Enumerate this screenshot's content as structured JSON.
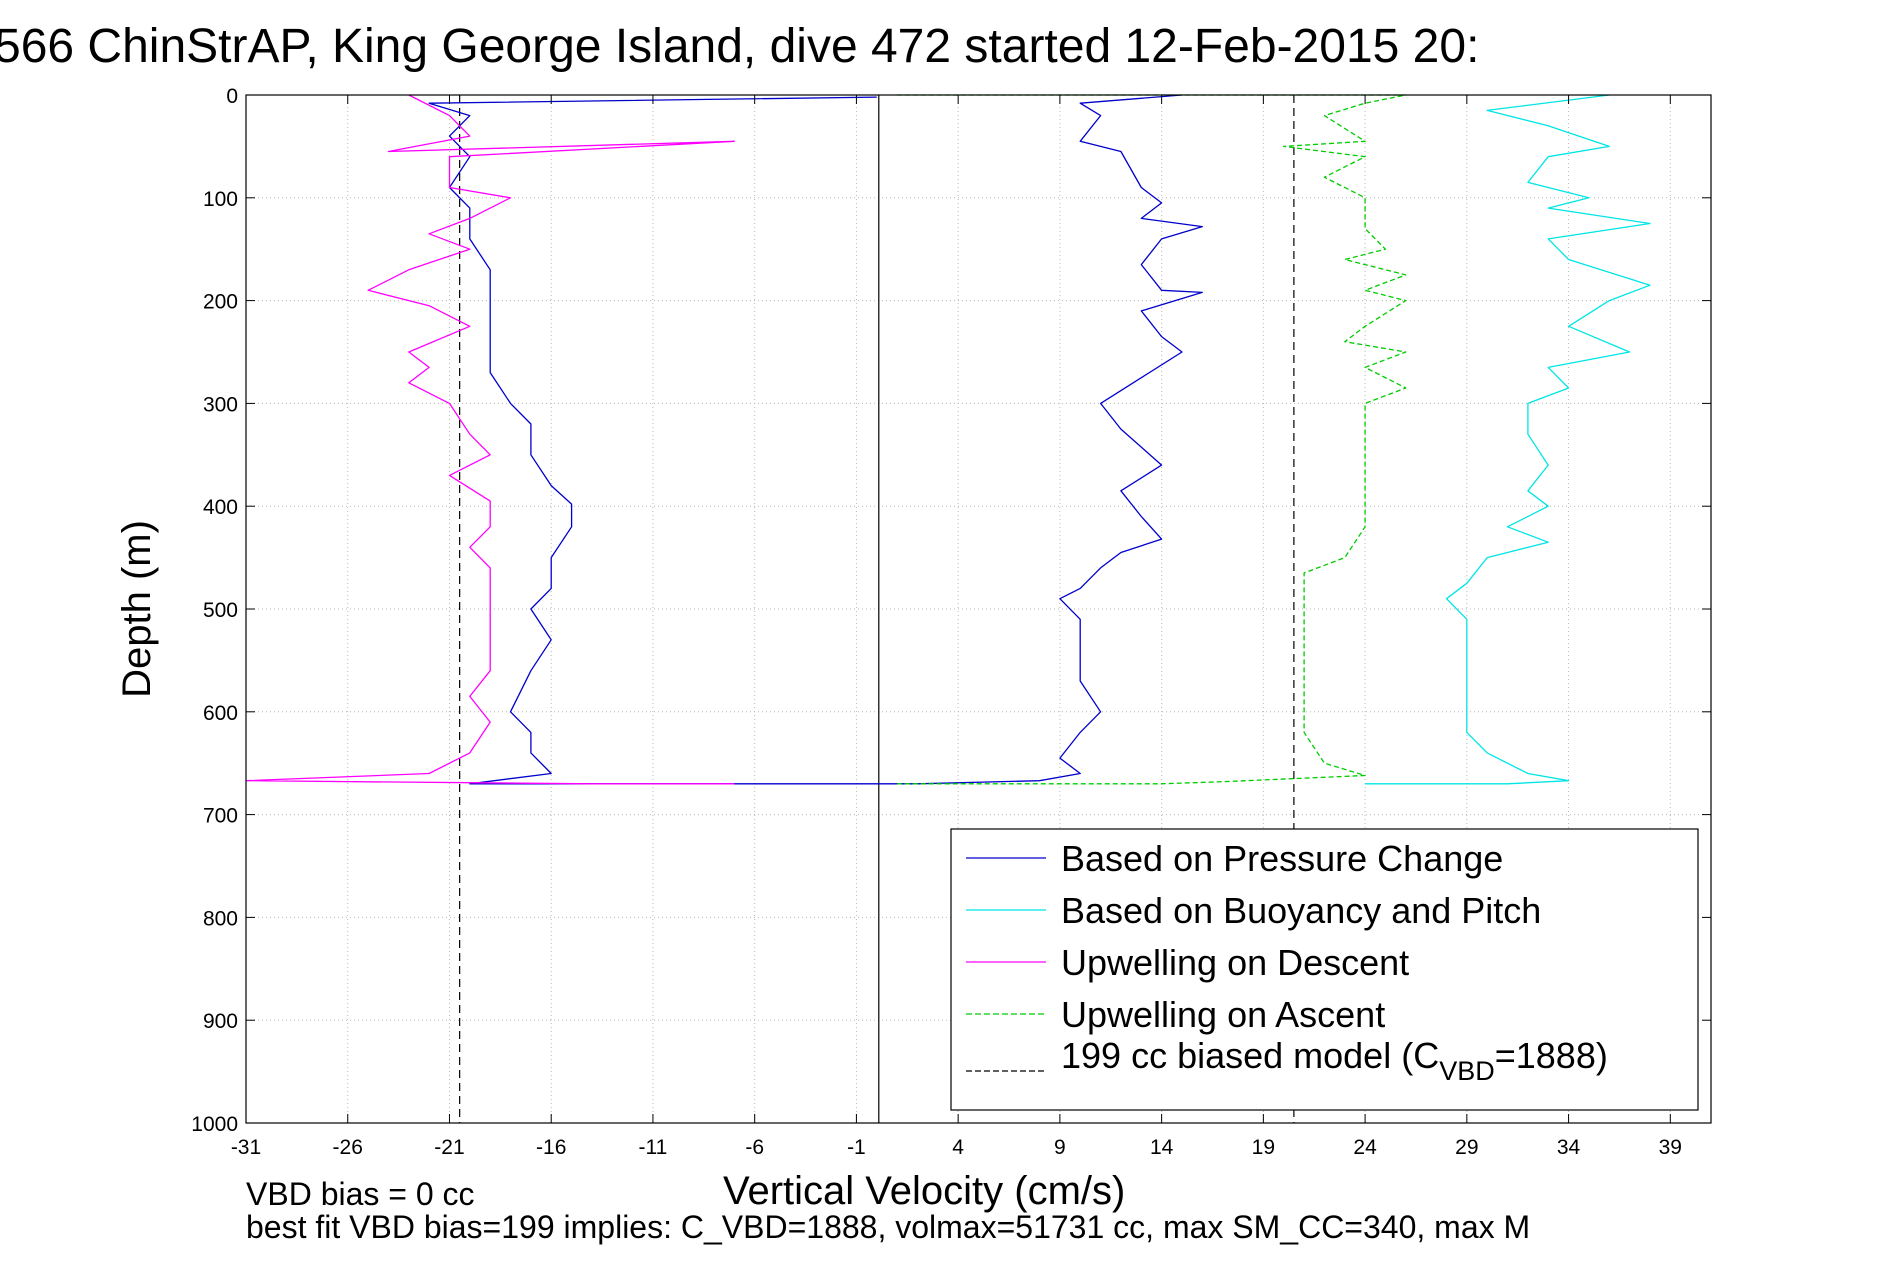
{
  "chart_data": {
    "type": "line",
    "title": "566 ChinStrAP, King George Island, dive 472 started 12-Feb-2015 20:",
    "xlabel": "Vertical Velocity (cm/s)",
    "ylabel": "Depth (m)",
    "xlim": [
      -31,
      41
    ],
    "ylim": [
      0,
      1000
    ],
    "y_reversed": true,
    "grid": true,
    "x_ticks": [
      -31,
      -26,
      -21,
      -16,
      -11,
      -6,
      -1,
      4,
      9,
      14,
      19,
      24,
      29,
      34,
      39
    ],
    "x_tick_labels": [
      "-31",
      "-26",
      "-21",
      "-16",
      "-11",
      "-6",
      "-1",
      "4",
      "9",
      "14",
      "19",
      "24",
      "29",
      "34",
      "39"
    ],
    "y_ticks": [
      0,
      100,
      200,
      300,
      400,
      500,
      600,
      700,
      800,
      900,
      1000
    ],
    "y_tick_labels": [
      "0",
      "100",
      "200",
      "300",
      "400",
      "500",
      "600",
      "700",
      "800",
      "900",
      "1000"
    ],
    "legend_position": "lower-right",
    "reference_lines": [
      {
        "axis": "x",
        "value": 0.1,
        "color": "#000000",
        "style": "solid"
      },
      {
        "axis": "x",
        "value": -20.5,
        "color": "#000000",
        "style": "dashed"
      },
      {
        "axis": "x",
        "value": 20.5,
        "color": "#000000",
        "style": "dashed"
      }
    ],
    "series": [
      {
        "name": "Based on Pressure Change",
        "color": "#0000cc",
        "style": "solid",
        "points": [
          [
            15,
            0
          ],
          [
            10,
            8
          ],
          [
            11,
            20
          ],
          [
            10,
            45
          ],
          [
            12,
            55
          ],
          [
            13,
            90
          ],
          [
            14,
            105
          ],
          [
            13,
            120
          ],
          [
            16,
            128
          ],
          [
            14,
            140
          ],
          [
            13,
            165
          ],
          [
            14,
            190
          ],
          [
            16,
            192
          ],
          [
            13,
            210
          ],
          [
            14,
            235
          ],
          [
            15,
            250
          ],
          [
            13,
            275
          ],
          [
            11,
            300
          ],
          [
            12,
            325
          ],
          [
            14,
            360
          ],
          [
            12,
            385
          ],
          [
            13,
            410
          ],
          [
            14,
            432
          ],
          [
            12,
            445
          ],
          [
            11,
            460
          ],
          [
            10,
            480
          ],
          [
            9,
            490
          ],
          [
            10,
            510
          ],
          [
            10,
            540
          ],
          [
            10,
            570
          ],
          [
            11,
            600
          ],
          [
            10,
            620
          ],
          [
            9,
            645
          ],
          [
            10,
            660
          ],
          [
            8,
            667
          ],
          [
            2,
            670
          ],
          [
            -20,
            670
          ],
          [
            -16,
            660
          ],
          [
            -17,
            640
          ],
          [
            -17,
            620
          ],
          [
            -18,
            600
          ],
          [
            -17,
            560
          ],
          [
            -16,
            530
          ],
          [
            -17,
            500
          ],
          [
            -16,
            480
          ],
          [
            -16,
            450
          ],
          [
            -15,
            420
          ],
          [
            -15,
            398
          ],
          [
            -16,
            380
          ],
          [
            -17,
            350
          ],
          [
            -17,
            320
          ],
          [
            -18,
            300
          ],
          [
            -19,
            270
          ],
          [
            -19,
            240
          ],
          [
            -19,
            200
          ],
          [
            -19,
            170
          ],
          [
            -20,
            140
          ],
          [
            -20,
            110
          ],
          [
            -21,
            90
          ],
          [
            -20,
            60
          ],
          [
            -21,
            40
          ],
          [
            -20,
            20
          ],
          [
            -22,
            8
          ],
          [
            0,
            2
          ]
        ]
      },
      {
        "name": "Based on Buoyancy and Pitch",
        "color": "#00e5e5",
        "style": "solid",
        "points": [
          [
            36,
            0
          ],
          [
            30,
            15
          ],
          [
            33,
            30
          ],
          [
            36,
            50
          ],
          [
            33,
            60
          ],
          [
            32,
            85
          ],
          [
            35,
            100
          ],
          [
            33,
            110
          ],
          [
            38,
            125
          ],
          [
            33,
            140
          ],
          [
            34,
            160
          ],
          [
            38,
            185
          ],
          [
            36,
            200
          ],
          [
            34,
            225
          ],
          [
            37,
            250
          ],
          [
            33,
            265
          ],
          [
            34,
            285
          ],
          [
            32,
            300
          ],
          [
            32,
            330
          ],
          [
            33,
            360
          ],
          [
            32,
            385
          ],
          [
            33,
            400
          ],
          [
            31,
            420
          ],
          [
            33,
            435
          ],
          [
            30,
            450
          ],
          [
            29,
            475
          ],
          [
            28,
            490
          ],
          [
            29,
            510
          ],
          [
            29,
            540
          ],
          [
            29,
            570
          ],
          [
            29,
            600
          ],
          [
            29,
            620
          ],
          [
            30,
            640
          ],
          [
            32,
            660
          ],
          [
            34,
            667
          ],
          [
            31,
            670
          ],
          [
            24,
            670
          ]
        ]
      },
      {
        "name": "Upwelling on Descent",
        "color": "#ff00ff",
        "style": "solid",
        "points": [
          [
            -23,
            0
          ],
          [
            -21,
            20
          ],
          [
            -20,
            40
          ],
          [
            -24,
            55
          ],
          [
            -7,
            45
          ],
          [
            -21,
            60
          ],
          [
            -21,
            90
          ],
          [
            -18,
            100
          ],
          [
            -20,
            120
          ],
          [
            -22,
            135
          ],
          [
            -20,
            150
          ],
          [
            -23,
            170
          ],
          [
            -25,
            190
          ],
          [
            -22,
            205
          ],
          [
            -20,
            225
          ],
          [
            -23,
            250
          ],
          [
            -22,
            265
          ],
          [
            -23,
            280
          ],
          [
            -21,
            300
          ],
          [
            -20,
            330
          ],
          [
            -19,
            350
          ],
          [
            -21,
            370
          ],
          [
            -19,
            395
          ],
          [
            -19,
            420
          ],
          [
            -20,
            440
          ],
          [
            -19,
            460
          ],
          [
            -19,
            480
          ],
          [
            -19,
            500
          ],
          [
            -19,
            530
          ],
          [
            -19,
            560
          ],
          [
            -20,
            585
          ],
          [
            -19,
            610
          ],
          [
            -20,
            640
          ],
          [
            -22,
            660
          ],
          [
            -31,
            667
          ],
          [
            -14,
            670
          ],
          [
            -7,
            670
          ]
        ]
      },
      {
        "name": "Upwelling on Ascent",
        "color": "#00cc00",
        "style": "dashed",
        "points": [
          [
            1,
            0
          ],
          [
            26,
            0
          ],
          [
            24,
            8
          ],
          [
            22,
            20
          ],
          [
            24,
            45
          ],
          [
            20,
            50
          ],
          [
            24,
            60
          ],
          [
            22,
            80
          ],
          [
            24,
            100
          ],
          [
            24,
            130
          ],
          [
            25,
            150
          ],
          [
            23,
            160
          ],
          [
            26,
            175
          ],
          [
            24,
            190
          ],
          [
            26,
            200
          ],
          [
            24,
            225
          ],
          [
            23,
            240
          ],
          [
            26,
            250
          ],
          [
            24,
            265
          ],
          [
            26,
            285
          ],
          [
            24,
            300
          ],
          [
            24,
            340
          ],
          [
            24,
            380
          ],
          [
            24,
            400
          ],
          [
            24,
            420
          ],
          [
            23,
            450
          ],
          [
            21,
            465
          ],
          [
            21,
            500
          ],
          [
            21,
            540
          ],
          [
            21,
            580
          ],
          [
            21,
            620
          ],
          [
            22,
            650
          ],
          [
            24,
            662
          ],
          [
            17,
            668
          ],
          [
            14,
            670
          ],
          [
            1,
            670
          ]
        ]
      },
      {
        "name": "199 cc biased model (C_VBD=1888)",
        "color": "#000000",
        "style": "dashed",
        "points": []
      }
    ],
    "legend_entries": [
      {
        "label": "Based on Pressure Change",
        "color": "#0000cc",
        "style": "solid"
      },
      {
        "label": "Based on Buoyancy and Pitch",
        "color": "#00e5e5",
        "style": "solid"
      },
      {
        "label": "Upwelling on Descent",
        "color": "#ff00ff",
        "style": "solid"
      },
      {
        "label": "Upwelling on Ascent",
        "color": "#00cc00",
        "style": "dashed"
      },
      {
        "label_main": "199 cc biased model (C",
        "label_sub": "VBD",
        "label_tail": "=1888)",
        "color": "#000000",
        "style": "dashed"
      }
    ],
    "annotations": [
      "VBD bias = 0 cc",
      "best fit VBD bias=199 implies: C_VBD=1888, volmax=51731 cc, max SM_CC=340, max M"
    ]
  }
}
